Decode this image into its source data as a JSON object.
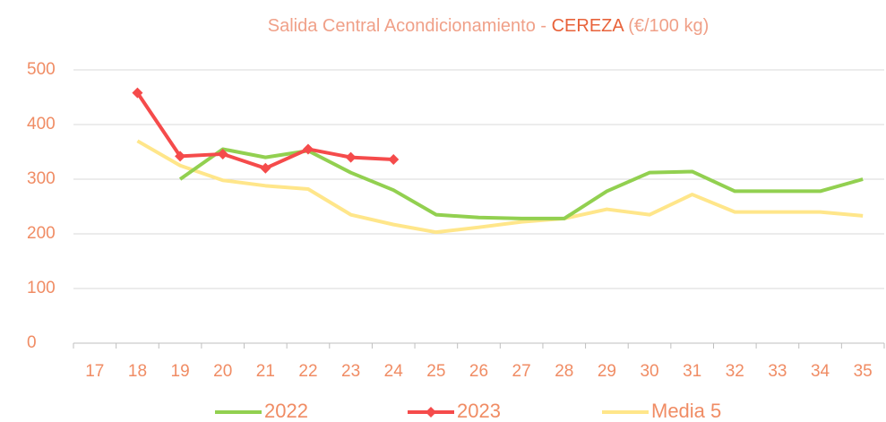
{
  "chart_data": {
    "type": "line",
    "title": "Salida Central Acondicionamiento - ",
    "title_highlight": "CEREZA",
    "title_suffix": " (€/100 kg)",
    "categories": [
      "17",
      "18",
      "19",
      "20",
      "21",
      "22",
      "23",
      "24",
      "25",
      "26",
      "27",
      "28",
      "29",
      "30",
      "31",
      "32",
      "33",
      "34",
      "35"
    ],
    "series": [
      {
        "name": "2022",
        "color": "#92d050",
        "values": [
          null,
          null,
          300,
          355,
          340,
          352,
          312,
          280,
          235,
          230,
          228,
          228,
          278,
          312,
          314,
          278,
          278,
          278,
          300
        ]
      },
      {
        "name": "2023",
        "color": "#f54b4b",
        "marker": "diamond",
        "values": [
          null,
          458,
          342,
          346,
          320,
          355,
          340,
          336,
          null,
          null,
          null,
          null,
          null,
          null,
          null,
          null,
          null,
          null,
          null
        ]
      },
      {
        "name": "Media 5",
        "color": "#ffe68a",
        "values": [
          null,
          370,
          325,
          298,
          288,
          282,
          235,
          217,
          203,
          212,
          222,
          228,
          245,
          235,
          272,
          240,
          240,
          240,
          233
        ]
      }
    ],
    "ylim": [
      0,
      500
    ],
    "yticks": [
      0,
      100,
      200,
      300,
      400,
      500
    ],
    "grid": true,
    "legend": "bottom"
  }
}
